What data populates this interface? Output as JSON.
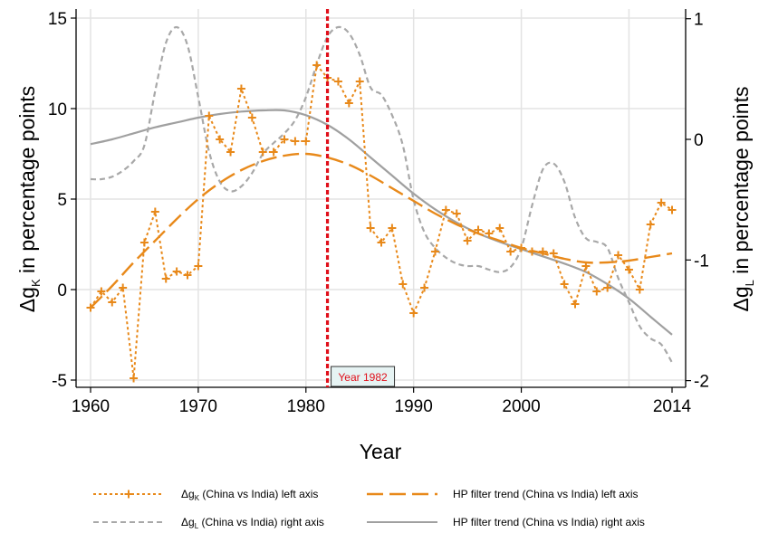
{
  "chart_data": {
    "type": "line",
    "title": "",
    "xlabel": "Year",
    "ylabel_left_main": "Δg",
    "ylabel_left_sub": "K",
    "ylabel_left_rest": " in percentage points",
    "ylabel_right_main": "Δg",
    "ylabel_right_sub": "L",
    "ylabel_right_rest": " in percentage points",
    "xlim": [
      1960,
      2014
    ],
    "ylim_left": [
      -5,
      15
    ],
    "ylim_right": [
      -2,
      1
    ],
    "x_ticks": [
      1960,
      1970,
      1980,
      1990,
      2000,
      2014
    ],
    "x_tick_labels": [
      "1960",
      "1970",
      "1980",
      "1990",
      "2000",
      "2014"
    ],
    "x_grid": [
      1960,
      1970,
      1980,
      1990,
      2000,
      2010
    ],
    "y_left_ticks": [
      -5,
      0,
      5,
      10,
      15
    ],
    "y_left_tick_labels": [
      "-5",
      "0",
      "5",
      "10",
      "15"
    ],
    "y_right_ticks": [
      -2,
      -1,
      0,
      1
    ],
    "y_right_tick_labels": [
      "-2",
      "-1",
      "0",
      "1"
    ],
    "grid": true,
    "colors": {
      "orange": "#e8891a",
      "gray_dash": "#a8a8a8",
      "gray_solid": "#a0a0a0",
      "vline": "#e0101b",
      "grid": "#e3e3e3",
      "annot_bg": "#e6f3f3"
    },
    "annotation": {
      "x": 1982,
      "text": "Year 1982"
    },
    "legend": {
      "position": "bottom",
      "items": [
        {
          "label_main": "Δg",
          "label_sub": "K",
          "label_rest": " (China vs India) left axis",
          "style": "orange-dotted-plus"
        },
        {
          "label_main": "",
          "label_sub": "",
          "label_rest": "HP filter trend (China vs India) left axis",
          "style": "orange-longdash"
        },
        {
          "label_main": "Δg",
          "label_sub": "L",
          "label_rest": " (China vs India) right axis",
          "style": "gray-dashed"
        },
        {
          "label_main": "",
          "label_sub": "",
          "label_rest": "HP filter trend (China vs India) right axis",
          "style": "gray-solid"
        }
      ]
    },
    "series": [
      {
        "name": "Δg_K (China vs India) left axis",
        "axis": "left",
        "x": [
          1960,
          1961,
          1962,
          1963,
          1964,
          1965,
          1966,
          1967,
          1968,
          1969,
          1970,
          1971,
          1972,
          1973,
          1974,
          1975,
          1976,
          1977,
          1978,
          1979,
          1980,
          1981,
          1982,
          1983,
          1984,
          1985,
          1986,
          1987,
          1988,
          1989,
          1990,
          1991,
          1992,
          1993,
          1994,
          1995,
          1996,
          1997,
          1998,
          1999,
          2000,
          2001,
          2002,
          2003,
          2004,
          2005,
          2006,
          2007,
          2008,
          2009,
          2010,
          2011,
          2012,
          2013,
          2014
        ],
        "y": [
          -1.0,
          -0.1,
          -0.7,
          0.1,
          -4.9,
          2.6,
          4.3,
          0.6,
          1.0,
          0.8,
          1.3,
          9.6,
          8.3,
          7.6,
          11.1,
          9.5,
          7.6,
          7.6,
          8.3,
          8.2,
          8.2,
          12.4,
          11.7,
          11.5,
          10.3,
          11.5,
          3.4,
          2.6,
          3.4,
          0.3,
          -1.3,
          0.1,
          2.1,
          4.4,
          4.2,
          2.7,
          3.3,
          3.1,
          3.4,
          2.1,
          2.3,
          2.1,
          2.1,
          2.0,
          0.3,
          -0.8,
          1.3,
          -0.1,
          0.1,
          1.9,
          1.1,
          0.0,
          3.6,
          4.8,
          4.4
        ]
      },
      {
        "name": "HP filter trend (China vs India) left axis",
        "axis": "left",
        "x": [
          1960,
          1962,
          1964,
          1966,
          1968,
          1970,
          1972,
          1974,
          1976,
          1978,
          1980,
          1982,
          1984,
          1986,
          1988,
          1990,
          1992,
          1994,
          1996,
          1998,
          2000,
          2002,
          2004,
          2006,
          2008,
          2010,
          2012,
          2014
        ],
        "y": [
          -1.0,
          0.2,
          1.5,
          2.7,
          3.9,
          5.0,
          5.9,
          6.6,
          7.1,
          7.4,
          7.5,
          7.3,
          6.9,
          6.3,
          5.6,
          4.9,
          4.2,
          3.6,
          3.1,
          2.7,
          2.3,
          2.0,
          1.7,
          1.5,
          1.5,
          1.6,
          1.8,
          2.0
        ]
      },
      {
        "name": "Δg_L (China vs India) right axis",
        "axis": "right",
        "x": [
          1960,
          1961,
          1962,
          1963,
          1964,
          1965,
          1966,
          1967,
          1968,
          1969,
          1970,
          1971,
          1972,
          1973,
          1974,
          1975,
          1976,
          1977,
          1978,
          1979,
          1980,
          1981,
          1982,
          1983,
          1984,
          1985,
          1986,
          1987,
          1988,
          1989,
          1990,
          1991,
          1992,
          1993,
          1994,
          1995,
          1996,
          1997,
          1998,
          1999,
          2000,
          2001,
          2002,
          2003,
          2004,
          2005,
          2006,
          2007,
          2008,
          2009,
          2010,
          2011,
          2012,
          2013,
          2014
        ],
        "y": [
          -0.33,
          -0.33,
          -0.31,
          -0.26,
          -0.18,
          -0.05,
          0.4,
          0.8,
          0.93,
          0.78,
          0.35,
          -0.1,
          -0.35,
          -0.43,
          -0.39,
          -0.28,
          -0.12,
          -0.03,
          0.05,
          0.16,
          0.35,
          0.62,
          0.85,
          0.93,
          0.88,
          0.7,
          0.43,
          0.37,
          0.2,
          -0.05,
          -0.5,
          -0.77,
          -0.9,
          -0.98,
          -1.03,
          -1.05,
          -1.05,
          -1.08,
          -1.1,
          -1.06,
          -0.9,
          -0.55,
          -0.25,
          -0.2,
          -0.35,
          -0.65,
          -0.82,
          -0.85,
          -0.9,
          -1.15,
          -1.35,
          -1.55,
          -1.65,
          -1.7,
          -1.85
        ]
      },
      {
        "name": "HP filter trend (China vs India) right axis",
        "axis": "right",
        "x": [
          1960,
          1962,
          1964,
          1966,
          1968,
          1970,
          1972,
          1974,
          1976,
          1978,
          1980,
          1982,
          1984,
          1986,
          1988,
          1990,
          1992,
          1994,
          1996,
          1998,
          2000,
          2002,
          2004,
          2006,
          2008,
          2010,
          2012,
          2014
        ],
        "y": [
          -0.04,
          0.0,
          0.05,
          0.1,
          0.14,
          0.18,
          0.21,
          0.23,
          0.24,
          0.24,
          0.2,
          0.12,
          0.0,
          -0.15,
          -0.3,
          -0.45,
          -0.58,
          -0.69,
          -0.78,
          -0.85,
          -0.91,
          -0.97,
          -1.03,
          -1.1,
          -1.2,
          -1.32,
          -1.47,
          -1.62
        ]
      }
    ]
  }
}
